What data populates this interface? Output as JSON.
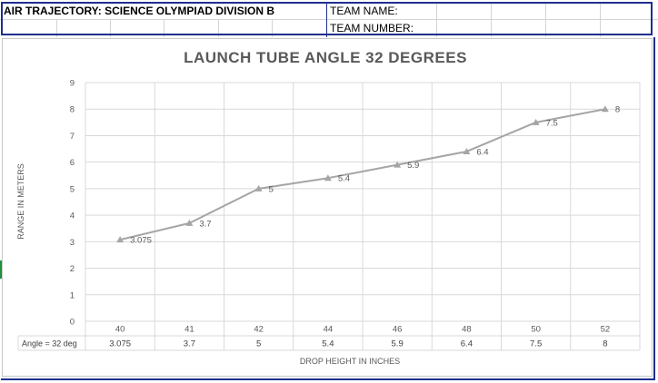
{
  "header": {
    "title": "AIR TRAJECTORY: SCIENCE OLYMPIAD DIVISION B",
    "team_name_label": "TEAM NAME:",
    "team_number_label": "TEAM NUMBER:"
  },
  "chart_data": {
    "type": "line",
    "title": "LAUNCH TUBE ANGLE 32 DEGREES",
    "xlabel": "DROP HEIGHT IN INCHES",
    "ylabel": "RANGE IN METERS",
    "categories": [
      "40",
      "41",
      "42",
      "44",
      "46",
      "48",
      "50",
      "52"
    ],
    "series": [
      {
        "name": "Angle = 32 deg",
        "values": [
          3.075,
          3.7,
          5,
          5.4,
          5.9,
          6.4,
          7.5,
          8
        ],
        "labels": [
          "3.075",
          "3.7",
          "5",
          "5.4",
          "5.9",
          "6.4",
          "7.5",
          "8"
        ]
      }
    ],
    "ylim": [
      0,
      9
    ],
    "yticks": [
      0,
      1,
      2,
      3,
      4,
      5,
      6,
      7,
      8,
      9
    ],
    "grid": true,
    "marker": "triangle",
    "line_color": "#a5a5a5",
    "data_table": true
  }
}
